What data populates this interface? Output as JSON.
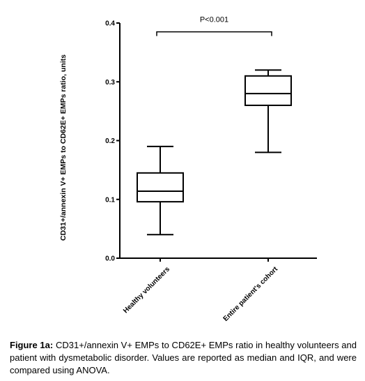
{
  "chart_data": {
    "type": "box",
    "ylabel": "CD31+/annexin V+ EMPs to CD62E+ EMPs ratio, units",
    "ylim": [
      0,
      0.4
    ],
    "yticks": [
      0.0,
      0.1,
      0.2,
      0.3,
      0.4
    ],
    "ytick_labels": [
      "0.0",
      "0.1",
      "0.2",
      "0.3",
      "0.4"
    ],
    "categories": [
      "Healthy volunteers",
      "Entire patient's cohort"
    ],
    "boxes": [
      {
        "category": "Healthy volunteers",
        "min": 0.04,
        "q1": 0.096,
        "median": 0.114,
        "q3": 0.145,
        "max": 0.19
      },
      {
        "category": "Entire patient's cohort",
        "min": 0.18,
        "q1": 0.26,
        "median": 0.28,
        "q3": 0.31,
        "max": 0.32
      }
    ],
    "annotation": {
      "text": "P<0.001",
      "between": [
        "Healthy volunteers",
        "Entire patient's cohort"
      ],
      "at_y": 0.385
    },
    "grid": false,
    "legend": "none"
  },
  "caption": {
    "label": "Figure 1a:",
    "text": "CD31+/annexin V+ EMPs to CD62E+ EMPs ratio in healthy volunteers and patient with dysmetabolic disorder. Values are reported as median and IQR, and were compared using ANOVA."
  }
}
